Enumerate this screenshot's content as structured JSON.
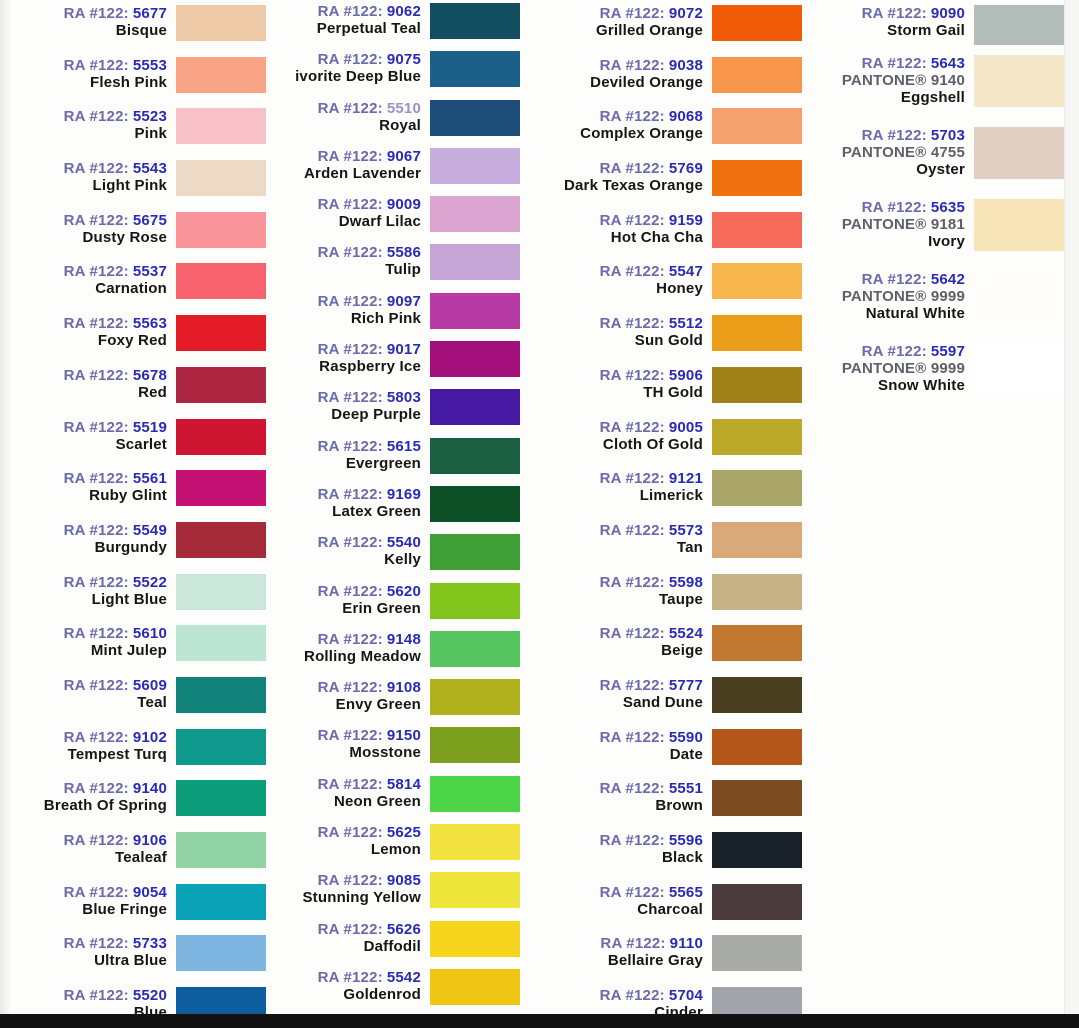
{
  "page": {
    "brand_prefix": "RA #122:"
  },
  "columns": [
    {
      "name": "column-1",
      "items": [
        {
          "num": "5677",
          "name": "Bisque",
          "color": "#edc9a8"
        },
        {
          "num": "5553",
          "name": "Flesh Pink",
          "color": "#f9a387"
        },
        {
          "num": "5523",
          "name": "Pink",
          "color": "#f8c2c8"
        },
        {
          "num": "5543",
          "name": "Light Pink",
          "color": "#ecd9c6"
        },
        {
          "num": "5675",
          "name": "Dusty Rose",
          "color": "#f8949a"
        },
        {
          "num": "5537",
          "name": "Carnation",
          "color": "#f6636e"
        },
        {
          "num": "5563",
          "name": "Foxy Red",
          "color": "#e31c27"
        },
        {
          "num": "5678",
          "name": "Red",
          "color": "#ae2742"
        },
        {
          "num": "5519",
          "name": "Scarlet",
          "color": "#ce1532"
        },
        {
          "num": "5561",
          "name": "Ruby Glint",
          "color": "#c51173"
        },
        {
          "num": "5549",
          "name": "Burgundy",
          "color": "#a52a3a"
        },
        {
          "num": "5522",
          "name": "Light Blue",
          "color": "#cbe7db"
        },
        {
          "num": "5610",
          "name": "Mint Julep",
          "color": "#bce5d4"
        },
        {
          "num": "5609",
          "name": "Teal",
          "color": "#12837b"
        },
        {
          "num": "9102",
          "name": "Tempest Turq",
          "color": "#109a8d"
        },
        {
          "num": "9140",
          "name": "Breath Of Spring",
          "color": "#0c9d7a"
        },
        {
          "num": "9106",
          "name": "Tealeaf",
          "color": "#92d3a5"
        },
        {
          "num": "9054",
          "name": "Blue Fringe",
          "color": "#09a2b7"
        },
        {
          "num": "5733",
          "name": "Ultra Blue",
          "color": "#7fb6e1"
        },
        {
          "num": "5520",
          "name": "Blue",
          "color": "#0e5e9f"
        }
      ]
    },
    {
      "name": "column-2",
      "items": [
        {
          "num": "9062",
          "name": "Perpetual Teal",
          "color": "#124e5f"
        },
        {
          "num": "9075",
          "name": "ivorite Deep Blue",
          "color": "#1c5f88"
        },
        {
          "num": "5510",
          "name": "Royal",
          "color": "#1c4e79",
          "muted": true
        },
        {
          "num": "9067",
          "name": "Arden Lavender",
          "color": "#c8addf"
        },
        {
          "num": "9009",
          "name": "Dwarf Lilac",
          "color": "#daa5d1"
        },
        {
          "num": "5586",
          "name": "Tulip",
          "color": "#c5a5d5"
        },
        {
          "num": "9097",
          "name": "Rich Pink",
          "color": "#b73aa5"
        },
        {
          "num": "9017",
          "name": "Raspberry Ice",
          "color": "#a20e7a"
        },
        {
          "num": "5803",
          "name": "Deep Purple",
          "color": "#4619a2"
        },
        {
          "num": "5615",
          "name": "Evergreen",
          "color": "#1d5f42"
        },
        {
          "num": "9169",
          "name": "Latex Green",
          "color": "#0d5028"
        },
        {
          "num": "5540",
          "name": "Kelly",
          "color": "#3f9f36"
        },
        {
          "num": "5620",
          "name": "Erin Green",
          "color": "#84c51d"
        },
        {
          "num": "9148",
          "name": "Rolling Meadow",
          "color": "#57c55f"
        },
        {
          "num": "9108",
          "name": "Envy Green",
          "color": "#b1b11d"
        },
        {
          "num": "9150",
          "name": "Mosstone",
          "color": "#7c9f1d"
        },
        {
          "num": "5814",
          "name": "Neon Green",
          "color": "#4dd549"
        },
        {
          "num": "5625",
          "name": "Lemon",
          "color": "#f2e340"
        },
        {
          "num": "9085",
          "name": "Stunning Yellow",
          "color": "#eee53b"
        },
        {
          "num": "5626",
          "name": "Daffodil",
          "color": "#f5d51d"
        },
        {
          "num": "5542",
          "name": "Goldenrod",
          "color": "#f0c615"
        }
      ]
    },
    {
      "name": "column-3",
      "items": [
        {
          "num": "9072",
          "name": "Grilled Orange",
          "color": "#f25b08"
        },
        {
          "num": "9038",
          "name": "Deviled Orange",
          "color": "#f8964b"
        },
        {
          "num": "9068",
          "name": "Complex Orange",
          "color": "#f5a16f"
        },
        {
          "num": "5769",
          "name": "Dark Texas Orange",
          "color": "#f07110"
        },
        {
          "num": "9159",
          "name": "Hot Cha Cha",
          "color": "#f56a5b"
        },
        {
          "num": "5547",
          "name": "Honey",
          "color": "#f8b64f"
        },
        {
          "num": "5512",
          "name": "Sun Gold",
          "color": "#e99d18"
        },
        {
          "num": "5906",
          "name": "TH Gold",
          "color": "#a18119"
        },
        {
          "num": "9005",
          "name": "Cloth Of Gold",
          "color": "#bda929"
        },
        {
          "num": "9121",
          "name": "Limerick",
          "color": "#a9a569"
        },
        {
          "num": "5573",
          "name": "Tan",
          "color": "#d9a979"
        },
        {
          "num": "5598",
          "name": "Taupe",
          "color": "#c5b386"
        },
        {
          "num": "5524",
          "name": "Beige",
          "color": "#c17931"
        },
        {
          "num": "5777",
          "name": "Sand Dune",
          "color": "#4b3f21"
        },
        {
          "num": "5590",
          "name": "Date",
          "color": "#b45519"
        },
        {
          "num": "5551",
          "name": "Brown",
          "color": "#7b4b21"
        },
        {
          "num": "5596",
          "name": "Black",
          "color": "#1a2229"
        },
        {
          "num": "5565",
          "name": "Charcoal",
          "color": "#4b3b3f"
        },
        {
          "num": "9110",
          "name": "Bellaire Gray",
          "color": "#a9aba9"
        },
        {
          "num": "5704",
          "name": "Cinder",
          "color": "#a1a5a9"
        }
      ]
    },
    {
      "name": "column-4",
      "items": [
        {
          "num": "9090",
          "name": "Storm Gail",
          "color": "#b3bdb9"
        },
        {
          "num": "5643",
          "pantone": "PANTONE® 9140",
          "name": "Eggshell",
          "color": "#f5e8c9"
        },
        {
          "num": "5703",
          "pantone": "PANTONE® 4755",
          "name": "Oyster",
          "color": "#e2cfc4"
        },
        {
          "num": "5635",
          "pantone": "PANTONE® 9181",
          "name": "Ivory",
          "color": "#f8e4b9"
        },
        {
          "num": "5642",
          "pantone": "PANTONE® 9999",
          "name": "Natural White",
          "color": "#fefdf9"
        },
        {
          "num": "5597",
          "pantone": "PANTONE® 9999",
          "name": "Snow White",
          "color": "#ffffff"
        }
      ]
    }
  ]
}
